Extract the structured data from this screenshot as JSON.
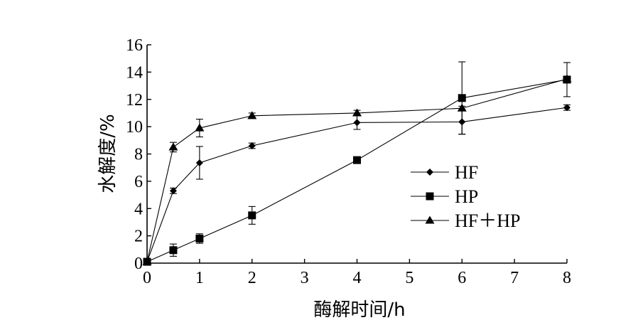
{
  "chart_data": {
    "type": "line",
    "xlabel": "酶解时间/h",
    "ylabel": "水解度/%",
    "xlim": [
      0,
      8
    ],
    "ylim": [
      0,
      16
    ],
    "xticks": [
      "0",
      "1",
      "2",
      "3",
      "4",
      "5",
      "6",
      "7",
      "8"
    ],
    "yticks": [
      "0",
      "2",
      "4",
      "6",
      "8",
      "10",
      "12",
      "14",
      "16"
    ],
    "grid": false,
    "legend_position": "center-right",
    "series": [
      {
        "name": "HF",
        "marker": "diamond",
        "x": [
          0,
          0.5,
          1,
          2,
          4,
          6,
          8
        ],
        "y": [
          0.1,
          5.3,
          7.35,
          8.6,
          10.3,
          10.35,
          11.4
        ],
        "err": [
          0,
          0.2,
          1.2,
          0.2,
          0.5,
          0.9,
          0.2
        ]
      },
      {
        "name": "HP",
        "marker": "square",
        "x": [
          0,
          0.5,
          1,
          2,
          4,
          6,
          8
        ],
        "y": [
          0.1,
          0.95,
          1.8,
          3.5,
          7.55,
          12.1,
          13.45
        ],
        "err": [
          0,
          0.45,
          0.35,
          0.65,
          0.1,
          2.65,
          1.25
        ]
      },
      {
        "name": "HF＋HP",
        "marker": "triangle",
        "x": [
          0,
          0.5,
          1,
          2,
          4,
          6,
          8
        ],
        "y": [
          0.1,
          8.5,
          9.9,
          10.8,
          11.0,
          11.35,
          13.5
        ],
        "err": [
          0,
          0.35,
          0.65,
          0.2,
          0.2,
          0.15,
          0.2
        ]
      }
    ]
  }
}
